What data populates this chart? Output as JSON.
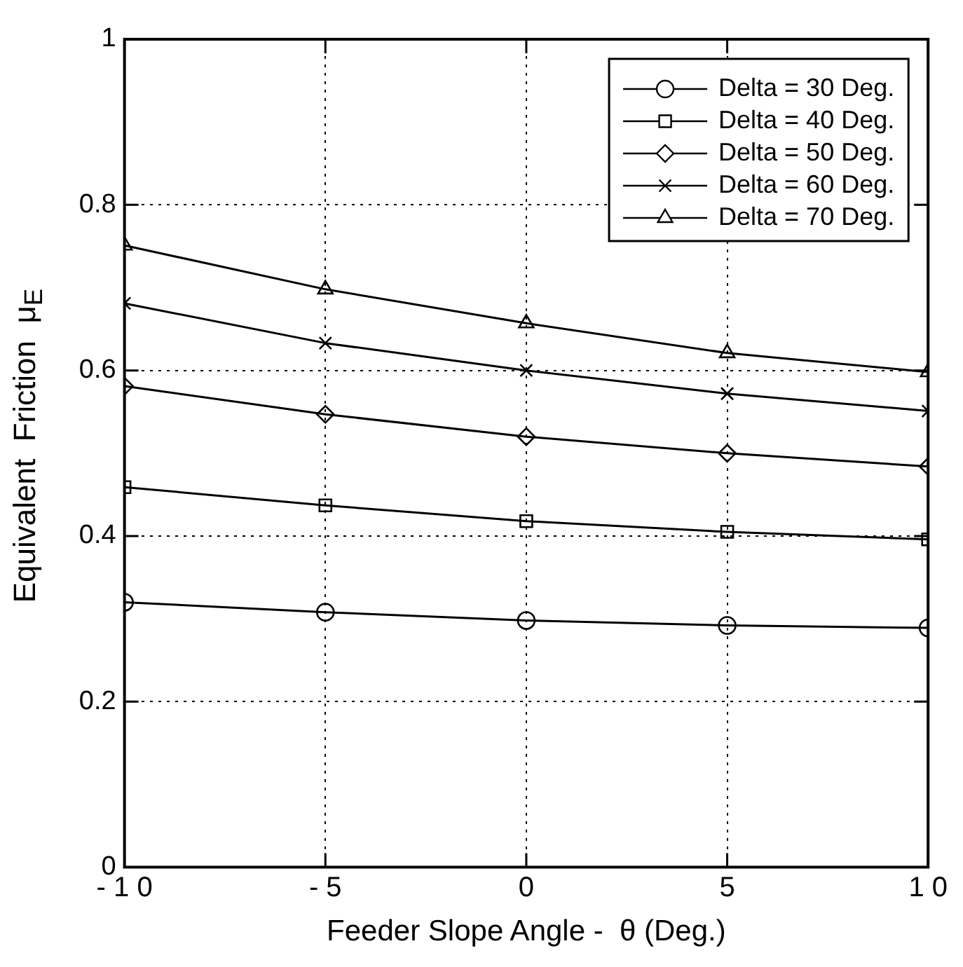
{
  "chart_data": {
    "type": "line",
    "xlabel": "Feeder Slope Angle -  θ (Deg.)",
    "ylabel": "Equivalent  Friction  μ$_{E}$",
    "x": [
      -10,
      -5,
      0,
      5,
      10
    ],
    "series": [
      {
        "name": "Delta = 30 Deg.",
        "color": "#000000",
        "marker": "circle",
        "values": [
          0.32,
          0.308,
          0.298,
          0.292,
          0.289
        ]
      },
      {
        "name": "Delta = 40 Deg.",
        "color": "#000000",
        "marker": "square",
        "values": [
          0.459,
          0.437,
          0.418,
          0.405,
          0.396
        ]
      },
      {
        "name": "Delta = 50 Deg.",
        "color": "#000000",
        "marker": "diamond",
        "values": [
          0.581,
          0.547,
          0.52,
          0.5,
          0.484
        ]
      },
      {
        "name": "Delta = 60 Deg.",
        "color": "#000000",
        "marker": "cross",
        "values": [
          0.681,
          0.633,
          0.6,
          0.572,
          0.551
        ]
      },
      {
        "name": "Delta = 70 Deg.",
        "color": "#000000",
        "marker": "triangle",
        "values": [
          0.751,
          0.698,
          0.657,
          0.621,
          0.598
        ]
      }
    ],
    "xlim": [
      -10,
      10
    ],
    "xticks": [
      -10,
      -5,
      0,
      5,
      10
    ],
    "ylim": [
      0,
      1
    ],
    "yticks": [
      0,
      0.2,
      0.4,
      0.6,
      0.8,
      1
    ],
    "grid": true,
    "legend": "top right",
    "line_style": "solid"
  }
}
